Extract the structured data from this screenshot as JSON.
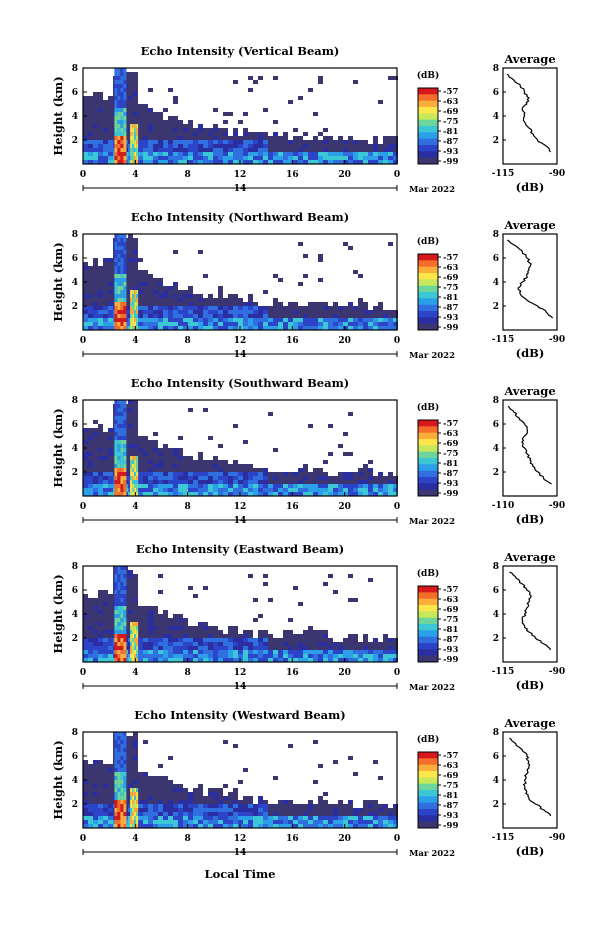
{
  "figure": {
    "xlabel_bottom": "Local Time"
  },
  "colorbar": {
    "unit": "(dB)",
    "ticks": [
      "-57",
      "-63",
      "-69",
      "-75",
      "-81",
      "-87",
      "-93",
      "-99"
    ],
    "colors": [
      "#d7191c",
      "#f46d2a",
      "#fdae3a",
      "#fee64a",
      "#c7e85a",
      "#6fd69b",
      "#3cc7d6",
      "#2ba0e8",
      "#2f6fe0",
      "#2c44c8",
      "#2a2ea0",
      "#3b3570"
    ]
  },
  "chart_data": [
    {
      "type": "heatmap",
      "title": "Echo Intensity (Vertical Beam)",
      "ylabel": "Height (km)",
      "x_ticks": [
        "0",
        "4",
        "8",
        "12",
        "16",
        "20",
        "0"
      ],
      "date_day": "14",
      "date_label": "Mar 2022",
      "ylim": [
        0,
        8
      ],
      "y_ticks": [
        "2",
        "4",
        "6",
        "8"
      ],
      "profile": {
        "title": "Average",
        "xlabel": "(dB)",
        "x_ticks": [
          "-115",
          "-90"
        ],
        "xlim": [
          -115,
          -90
        ],
        "y_ticks": [
          "2",
          "4",
          "6",
          "8"
        ],
        "heights": [
          1.0,
          1.5,
          2.0,
          2.5,
          3.0,
          3.5,
          4.0,
          4.5,
          5.0,
          5.5,
          6.0,
          6.5,
          7.0,
          7.5
        ],
        "values": [
          -93,
          -95,
          -99,
          -101,
          -103,
          -105,
          -105,
          -106,
          -104,
          -103,
          -105,
          -107,
          -110,
          -113
        ]
      }
    },
    {
      "type": "heatmap",
      "title": "Echo Intensity (Northward Beam)",
      "ylabel": "Height (km)",
      "x_ticks": [
        "0",
        "4",
        "8",
        "12",
        "16",
        "20",
        "0"
      ],
      "date_day": "14",
      "date_label": "Mar 2022",
      "ylim": [
        0,
        8
      ],
      "y_ticks": [
        "2",
        "4",
        "6",
        "8"
      ],
      "profile": {
        "title": "Average",
        "xlabel": "(dB)",
        "x_ticks": [
          "-115",
          "-90"
        ],
        "xlim": [
          -115,
          -90
        ],
        "y_ticks": [
          "2",
          "4",
          "6",
          "8"
        ],
        "heights": [
          1.0,
          1.5,
          2.0,
          2.5,
          3.0,
          3.5,
          4.0,
          4.5,
          5.0,
          5.5,
          6.0,
          6.5,
          7.0,
          7.5
        ],
        "values": [
          -92,
          -95,
          -99,
          -104,
          -107,
          -108,
          -106,
          -104,
          -103,
          -102,
          -104,
          -106,
          -109,
          -113
        ]
      }
    },
    {
      "type": "heatmap",
      "title": "Echo Intensity (Southward Beam)",
      "ylabel": "Height (km)",
      "x_ticks": [
        "0",
        "4",
        "8",
        "12",
        "16",
        "20",
        "0"
      ],
      "date_day": "14",
      "date_label": "Mar 2022",
      "ylim": [
        0,
        8
      ],
      "y_ticks": [
        "2",
        "4",
        "6",
        "8"
      ],
      "profile": {
        "title": "Average",
        "xlabel": "(dB)",
        "x_ticks": [
          "-110",
          "-90"
        ],
        "xlim": [
          -110,
          -90
        ],
        "y_ticks": [
          "2",
          "4",
          "6",
          "8"
        ],
        "heights": [
          1.0,
          1.5,
          2.0,
          2.5,
          3.0,
          3.5,
          4.0,
          4.5,
          5.0,
          5.5,
          6.0,
          6.5,
          7.0,
          7.5
        ],
        "values": [
          -92,
          -95,
          -97,
          -99,
          -100,
          -101,
          -102,
          -103,
          -102,
          -101,
          -102,
          -104,
          -106,
          -108
        ]
      }
    },
    {
      "type": "heatmap",
      "title": "Echo Intensity (Eastward Beam)",
      "ylabel": "Height (km)",
      "x_ticks": [
        "0",
        "4",
        "8",
        "12",
        "16",
        "20",
        "0"
      ],
      "date_day": "14",
      "date_label": "Mar 2022",
      "ylim": [
        0,
        8
      ],
      "y_ticks": [
        "2",
        "4",
        "6",
        "8"
      ],
      "profile": {
        "title": "Average",
        "xlabel": "(dB)",
        "x_ticks": [
          "-115",
          "-90"
        ],
        "xlim": [
          -115,
          -90
        ],
        "y_ticks": [
          "2",
          "4",
          "6",
          "8"
        ],
        "heights": [
          1.0,
          1.5,
          2.0,
          2.5,
          3.0,
          3.5,
          4.0,
          4.5,
          5.0,
          5.5,
          6.0,
          6.5,
          7.0,
          7.5
        ],
        "values": [
          -93,
          -96,
          -100,
          -103,
          -105,
          -106,
          -105,
          -104,
          -103,
          -102,
          -104,
          -106,
          -109,
          -112
        ]
      }
    },
    {
      "type": "heatmap",
      "title": "Echo Intensity (Westward Beam)",
      "ylabel": "Height (km)",
      "x_ticks": [
        "0",
        "4",
        "8",
        "12",
        "16",
        "20",
        "0"
      ],
      "date_day": "14",
      "date_label": "Mar 2022",
      "ylim": [
        0,
        8
      ],
      "y_ticks": [
        "2",
        "4",
        "6",
        "8"
      ],
      "profile": {
        "title": "Average",
        "xlabel": "(dB)",
        "x_ticks": [
          "-115",
          "-90"
        ],
        "xlim": [
          -115,
          -90
        ],
        "y_ticks": [
          "2",
          "4",
          "6",
          "8"
        ],
        "heights": [
          1.0,
          1.5,
          2.0,
          2.5,
          3.0,
          3.5,
          4.0,
          4.5,
          5.0,
          5.5,
          6.0,
          6.5,
          7.0,
          7.5
        ],
        "values": [
          -93,
          -96,
          -100,
          -103,
          -104,
          -105,
          -105,
          -104,
          -103,
          -103,
          -104,
          -106,
          -109,
          -112
        ]
      }
    }
  ]
}
